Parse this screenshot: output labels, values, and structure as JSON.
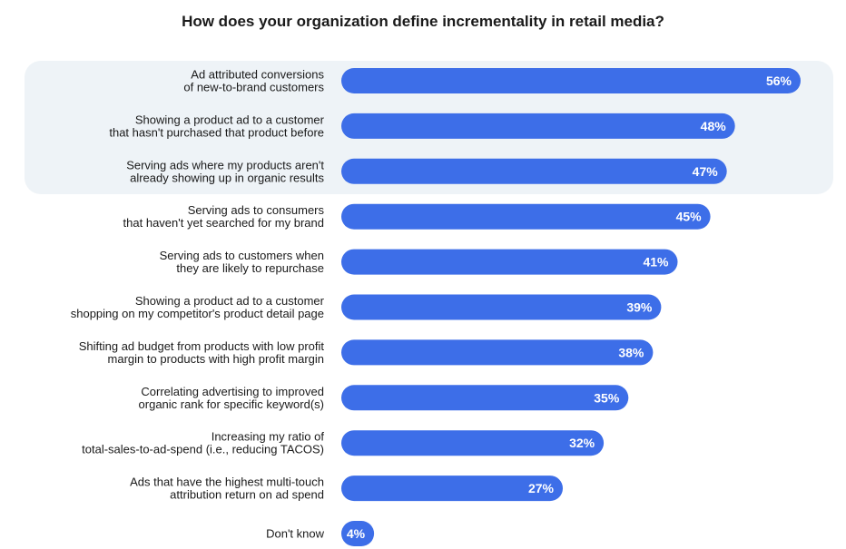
{
  "chart_data": {
    "type": "bar",
    "orientation": "horizontal",
    "title": "How does your organization define incrementality in retail media?",
    "categories": [
      [
        "Ad attributed conversions",
        "of new-to-brand customers"
      ],
      [
        "Showing a product ad to a customer",
        "that hasn't purchased that product before"
      ],
      [
        "Serving ads where my products aren't",
        "already showing up in organic results"
      ],
      [
        "Serving ads to consumers",
        "that haven't yet searched for my brand"
      ],
      [
        "Serving ads to customers when",
        "they are likely to repurchase"
      ],
      [
        "Showing a product ad to a customer",
        "shopping on my competitor's product detail page"
      ],
      [
        "Shifting ad budget from products with low profit",
        "margin to products with high profit margin"
      ],
      [
        "Correlating advertising to improved",
        "organic rank for specific keyword(s)"
      ],
      [
        "Increasing my ratio of",
        "total-sales-to-ad-spend (i.e., reducing TACOS)"
      ],
      [
        "Ads that have the highest multi-touch",
        "attribution return on ad spend"
      ],
      [
        "Don't know"
      ]
    ],
    "values": [
      56,
      48,
      47,
      45,
      41,
      39,
      38,
      35,
      32,
      27,
      4
    ],
    "value_labels": [
      "56%",
      "48%",
      "47%",
      "45%",
      "41%",
      "39%",
      "38%",
      "35%",
      "32%",
      "27%",
      "4%"
    ],
    "highlighted_count": 3,
    "xlim": [
      0,
      56
    ],
    "grid": false,
    "legend": "none",
    "colors": {
      "bar": "#3d6ee8",
      "highlight_background": "#eef3f7",
      "text": "#1a1a1a",
      "value_text": "#ffffff"
    }
  }
}
